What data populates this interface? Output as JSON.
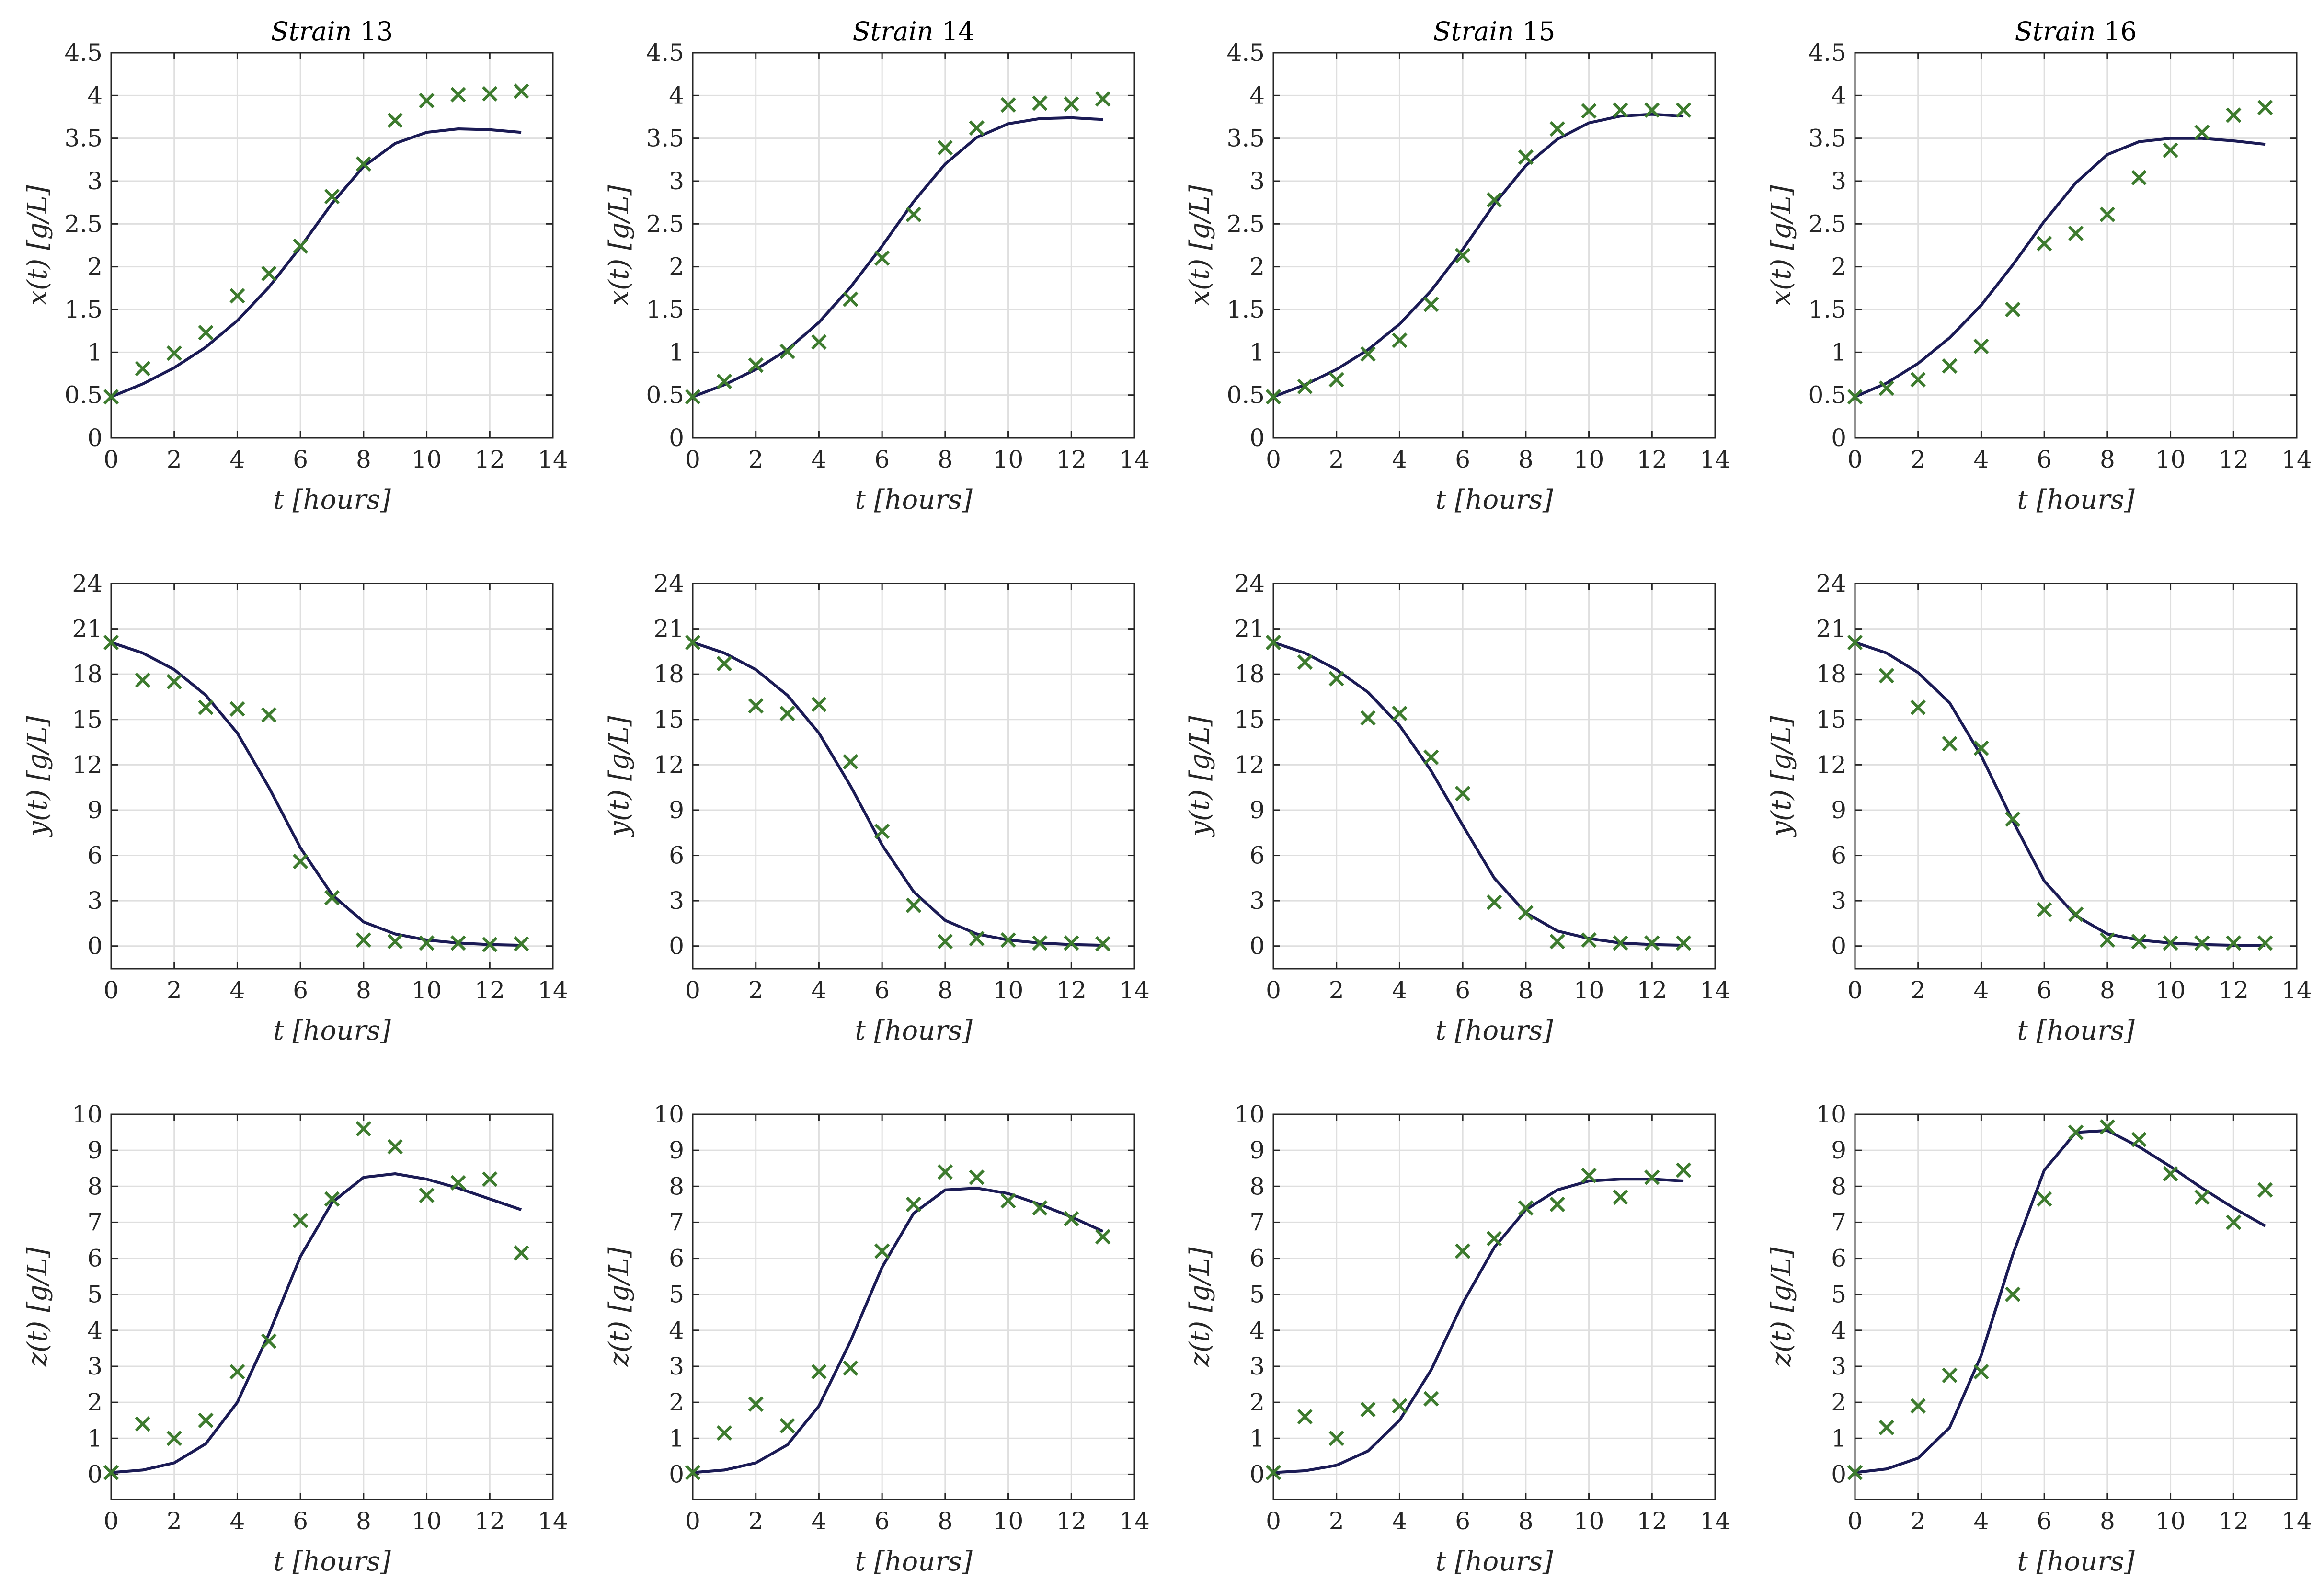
{
  "colors": {
    "model": "#1b1b55",
    "data": "#3d7b2e"
  },
  "chart_data": [
    {
      "type": "line",
      "title": "Strain 13",
      "xlabel": "t [hours]",
      "ylabel": "x(t) [g/L]",
      "xlim": [
        0,
        14
      ],
      "ylim": [
        0,
        4.5
      ],
      "xticks": [
        "0",
        "2",
        "4",
        "6",
        "8",
        "10",
        "12",
        "14"
      ],
      "yticks": [
        "0",
        "0.5",
        "1",
        "1.5",
        "2",
        "2.5",
        "3",
        "3.5",
        "4",
        "4.5"
      ],
      "grid": true,
      "x": [
        0,
        1,
        2,
        3,
        4,
        5,
        6,
        7,
        8,
        9,
        10,
        11,
        12,
        13
      ],
      "series": [
        {
          "values": [
            0.48,
            0.63,
            0.82,
            1.06,
            1.37,
            1.76,
            2.23,
            2.74,
            3.17,
            3.44,
            3.57,
            3.61,
            3.6,
            3.57
          ]
        },
        {
          "values": [
            0.48,
            0.81,
            0.99,
            1.23,
            1.66,
            1.92,
            2.24,
            2.82,
            3.2,
            3.71,
            3.94,
            4.01,
            4.02,
            4.05
          ]
        }
      ]
    },
    {
      "type": "line",
      "title": "Strain 14",
      "xlabel": "t [hours]",
      "ylabel": "x(t) [g/L]",
      "xlim": [
        0,
        14
      ],
      "ylim": [
        0,
        4.5
      ],
      "xticks": [
        "0",
        "2",
        "4",
        "6",
        "8",
        "10",
        "12",
        "14"
      ],
      "yticks": [
        "0",
        "0.5",
        "1",
        "1.5",
        "2",
        "2.5",
        "3",
        "3.5",
        "4",
        "4.5"
      ],
      "grid": true,
      "x": [
        0,
        1,
        2,
        3,
        4,
        5,
        6,
        7,
        8,
        9,
        10,
        11,
        12,
        13
      ],
      "series": [
        {
          "values": [
            0.48,
            0.62,
            0.8,
            1.03,
            1.35,
            1.76,
            2.24,
            2.76,
            3.2,
            3.51,
            3.67,
            3.73,
            3.74,
            3.72
          ]
        },
        {
          "values": [
            0.48,
            0.66,
            0.85,
            1.01,
            1.12,
            1.62,
            2.1,
            2.61,
            3.39,
            3.62,
            3.89,
            3.91,
            3.9,
            3.96
          ]
        }
      ]
    },
    {
      "type": "line",
      "title": "Strain 15",
      "xlabel": "t [hours]",
      "ylabel": "x(t) [g/L]",
      "xlim": [
        0,
        14
      ],
      "ylim": [
        0,
        4.5
      ],
      "xticks": [
        "0",
        "2",
        "4",
        "6",
        "8",
        "10",
        "12",
        "14"
      ],
      "yticks": [
        "0",
        "0.5",
        "1",
        "1.5",
        "2",
        "2.5",
        "3",
        "3.5",
        "4",
        "4.5"
      ],
      "grid": true,
      "x": [
        0,
        1,
        2,
        3,
        4,
        5,
        6,
        7,
        8,
        9,
        10,
        11,
        12,
        13
      ],
      "series": [
        {
          "values": [
            0.48,
            0.62,
            0.8,
            1.03,
            1.33,
            1.72,
            2.2,
            2.73,
            3.18,
            3.49,
            3.68,
            3.76,
            3.78,
            3.76
          ]
        },
        {
          "values": [
            0.48,
            0.6,
            0.68,
            0.98,
            1.14,
            1.56,
            2.13,
            2.78,
            3.28,
            3.61,
            3.82,
            3.83,
            3.83,
            3.83
          ]
        }
      ]
    },
    {
      "type": "line",
      "title": "Strain 16",
      "xlabel": "t [hours]",
      "ylabel": "x(t) [g/L]",
      "xlim": [
        0,
        14
      ],
      "ylim": [
        0,
        4.5
      ],
      "xticks": [
        "0",
        "2",
        "4",
        "6",
        "8",
        "10",
        "12",
        "14"
      ],
      "yticks": [
        "0",
        "0.5",
        "1",
        "1.5",
        "2",
        "2.5",
        "3",
        "3.5",
        "4",
        "4.5"
      ],
      "grid": true,
      "x": [
        0,
        1,
        2,
        3,
        4,
        5,
        6,
        7,
        8,
        9,
        10,
        11,
        12,
        13
      ],
      "series": [
        {
          "values": [
            0.48,
            0.64,
            0.87,
            1.17,
            1.55,
            2.02,
            2.53,
            2.98,
            3.31,
            3.46,
            3.5,
            3.5,
            3.47,
            3.43
          ]
        },
        {
          "values": [
            0.48,
            0.58,
            0.68,
            0.84,
            1.07,
            1.5,
            2.27,
            2.39,
            2.61,
            3.04,
            3.36,
            3.57,
            3.77,
            3.86
          ]
        }
      ]
    },
    {
      "type": "line",
      "title": "",
      "xlabel": "t [hours]",
      "ylabel": "y(t) [g/L]",
      "xlim": [
        0,
        14
      ],
      "ylim": [
        -1.5,
        24
      ],
      "xticks": [
        "0",
        "2",
        "4",
        "6",
        "8",
        "10",
        "12",
        "14"
      ],
      "yticks": [
        "0",
        "3",
        "6",
        "9",
        "12",
        "15",
        "18",
        "21",
        "24"
      ],
      "grid": true,
      "x": [
        0,
        1,
        2,
        3,
        4,
        5,
        6,
        7,
        8,
        9,
        10,
        11,
        12,
        13
      ],
      "series": [
        {
          "values": [
            20.1,
            19.4,
            18.3,
            16.6,
            14.1,
            10.5,
            6.5,
            3.4,
            1.6,
            0.8,
            0.4,
            0.2,
            0.1,
            0.05
          ]
        },
        {
          "values": [
            20.1,
            17.6,
            17.5,
            15.8,
            15.7,
            15.3,
            5.6,
            3.2,
            0.4,
            0.3,
            0.2,
            0.2,
            0.1,
            0.15
          ]
        }
      ]
    },
    {
      "type": "line",
      "title": "",
      "xlabel": "t [hours]",
      "ylabel": "y(t) [g/L]",
      "xlim": [
        0,
        14
      ],
      "ylim": [
        -1.5,
        24
      ],
      "xticks": [
        "0",
        "2",
        "4",
        "6",
        "8",
        "10",
        "12",
        "14"
      ],
      "yticks": [
        "0",
        "3",
        "6",
        "9",
        "12",
        "15",
        "18",
        "21",
        "24"
      ],
      "grid": true,
      "x": [
        0,
        1,
        2,
        3,
        4,
        5,
        6,
        7,
        8,
        9,
        10,
        11,
        12,
        13
      ],
      "series": [
        {
          "values": [
            20.1,
            19.4,
            18.3,
            16.6,
            14.1,
            10.6,
            6.7,
            3.6,
            1.7,
            0.8,
            0.4,
            0.2,
            0.1,
            0.05
          ]
        },
        {
          "values": [
            20.1,
            18.7,
            15.9,
            15.4,
            16.0,
            12.2,
            7.6,
            2.7,
            0.3,
            0.5,
            0.4,
            0.2,
            0.2,
            0.15
          ]
        }
      ]
    },
    {
      "type": "line",
      "title": "",
      "xlabel": "t [hours]",
      "ylabel": "y(t) [g/L]",
      "xlim": [
        0,
        14
      ],
      "ylim": [
        -1.5,
        24
      ],
      "xticks": [
        "0",
        "2",
        "4",
        "6",
        "8",
        "10",
        "12",
        "14"
      ],
      "yticks": [
        "0",
        "3",
        "6",
        "9",
        "12",
        "15",
        "18",
        "21",
        "24"
      ],
      "grid": true,
      "x": [
        0,
        1,
        2,
        3,
        4,
        5,
        6,
        7,
        8,
        9,
        10,
        11,
        12,
        13
      ],
      "series": [
        {
          "values": [
            20.1,
            19.4,
            18.3,
            16.8,
            14.6,
            11.6,
            8.0,
            4.5,
            2.2,
            1.0,
            0.5,
            0.2,
            0.1,
            0.05
          ]
        },
        {
          "values": [
            20.1,
            18.8,
            17.7,
            15.1,
            15.4,
            12.5,
            10.1,
            2.9,
            2.2,
            0.3,
            0.4,
            0.2,
            0.2,
            0.2
          ]
        }
      ]
    },
    {
      "type": "line",
      "title": "",
      "xlabel": "t [hours]",
      "ylabel": "y(t) [g/L]",
      "xlim": [
        0,
        14
      ],
      "ylim": [
        -1.5,
        24
      ],
      "xticks": [
        "0",
        "2",
        "4",
        "6",
        "8",
        "10",
        "12",
        "14"
      ],
      "yticks": [
        "0",
        "3",
        "6",
        "9",
        "12",
        "15",
        "18",
        "21",
        "24"
      ],
      "grid": true,
      "x": [
        0,
        1,
        2,
        3,
        4,
        5,
        6,
        7,
        8,
        9,
        10,
        11,
        12,
        13
      ],
      "series": [
        {
          "values": [
            20.1,
            19.4,
            18.1,
            16.1,
            12.6,
            8.3,
            4.3,
            2.0,
            0.8,
            0.4,
            0.2,
            0.1,
            0.05,
            0.05
          ]
        },
        {
          "values": [
            20.1,
            17.9,
            15.8,
            13.4,
            13.1,
            8.4,
            2.4,
            2.1,
            0.4,
            0.3,
            0.2,
            0.2,
            0.2,
            0.2
          ]
        }
      ]
    },
    {
      "type": "line",
      "title": "",
      "xlabel": "t [hours]",
      "ylabel": "z(t) [g/L]",
      "xlim": [
        0,
        14
      ],
      "ylim": [
        -0.7,
        10
      ],
      "xticks": [
        "0",
        "2",
        "4",
        "6",
        "8",
        "10",
        "12",
        "14"
      ],
      "yticks": [
        "0",
        "1",
        "2",
        "3",
        "4",
        "5",
        "6",
        "7",
        "8",
        "9",
        "10"
      ],
      "grid": true,
      "x": [
        0,
        1,
        2,
        3,
        4,
        5,
        6,
        7,
        8,
        9,
        10,
        11,
        12,
        13
      ],
      "series": [
        {
          "values": [
            0.05,
            0.12,
            0.32,
            0.85,
            2.0,
            3.9,
            6.05,
            7.55,
            8.25,
            8.35,
            8.2,
            7.95,
            7.65,
            7.35
          ]
        },
        {
          "values": [
            0.05,
            1.4,
            1.0,
            1.5,
            2.85,
            3.7,
            7.05,
            7.65,
            9.6,
            9.1,
            7.75,
            8.1,
            8.2,
            6.15
          ]
        }
      ]
    },
    {
      "type": "line",
      "title": "",
      "xlabel": "t [hours]",
      "ylabel": "z(t) [g/L]",
      "xlim": [
        0,
        14
      ],
      "ylim": [
        -0.7,
        10
      ],
      "xticks": [
        "0",
        "2",
        "4",
        "6",
        "8",
        "10",
        "12",
        "14"
      ],
      "yticks": [
        "0",
        "1",
        "2",
        "3",
        "4",
        "5",
        "6",
        "7",
        "8",
        "9",
        "10"
      ],
      "grid": true,
      "x": [
        0,
        1,
        2,
        3,
        4,
        5,
        6,
        7,
        8,
        9,
        10,
        11,
        12,
        13
      ],
      "series": [
        {
          "values": [
            0.05,
            0.12,
            0.32,
            0.82,
            1.9,
            3.7,
            5.75,
            7.25,
            7.9,
            7.95,
            7.8,
            7.5,
            7.15,
            6.75
          ]
        },
        {
          "values": [
            0.05,
            1.15,
            1.95,
            1.35,
            2.85,
            2.95,
            6.2,
            7.5,
            8.4,
            8.25,
            7.6,
            7.4,
            7.1,
            6.6
          ]
        }
      ]
    },
    {
      "type": "line",
      "title": "",
      "xlabel": "t [hours]",
      "ylabel": "z(t) [g/L]",
      "xlim": [
        0,
        14
      ],
      "ylim": [
        -0.7,
        10
      ],
      "xticks": [
        "0",
        "2",
        "4",
        "6",
        "8",
        "10",
        "12",
        "14"
      ],
      "yticks": [
        "0",
        "1",
        "2",
        "3",
        "4",
        "5",
        "6",
        "7",
        "8",
        "9",
        "10"
      ],
      "grid": true,
      "x": [
        0,
        1,
        2,
        3,
        4,
        5,
        6,
        7,
        8,
        9,
        10,
        11,
        12,
        13
      ],
      "series": [
        {
          "values": [
            0.05,
            0.1,
            0.25,
            0.65,
            1.5,
            2.9,
            4.75,
            6.3,
            7.35,
            7.9,
            8.15,
            8.2,
            8.2,
            8.15
          ]
        },
        {
          "values": [
            0.05,
            1.6,
            1.0,
            1.8,
            1.9,
            2.1,
            6.2,
            6.55,
            7.4,
            7.5,
            8.3,
            7.7,
            8.25,
            8.45
          ]
        }
      ]
    },
    {
      "type": "line",
      "title": "",
      "xlabel": "t [hours]",
      "ylabel": "z(t) [g/L]",
      "xlim": [
        0,
        14
      ],
      "ylim": [
        -0.7,
        10
      ],
      "xticks": [
        "0",
        "2",
        "4",
        "6",
        "8",
        "10",
        "12",
        "14"
      ],
      "yticks": [
        "0",
        "1",
        "2",
        "3",
        "4",
        "5",
        "6",
        "7",
        "8",
        "9",
        "10"
      ],
      "grid": true,
      "x": [
        0,
        1,
        2,
        3,
        4,
        5,
        6,
        7,
        8,
        9,
        10,
        11,
        12,
        13
      ],
      "series": [
        {
          "values": [
            0.05,
            0.15,
            0.45,
            1.3,
            3.3,
            6.1,
            8.45,
            9.5,
            9.55,
            9.1,
            8.55,
            7.95,
            7.4,
            6.9
          ]
        },
        {
          "values": [
            0.05,
            1.3,
            1.9,
            2.75,
            2.85,
            5.0,
            7.65,
            9.5,
            9.65,
            9.3,
            8.35,
            7.7,
            7.0,
            7.9
          ]
        }
      ]
    }
  ]
}
